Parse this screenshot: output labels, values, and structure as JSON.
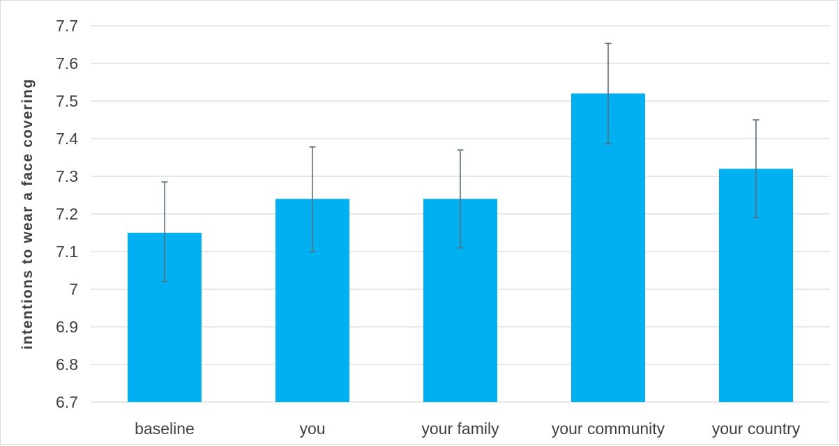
{
  "chart_data": {
    "type": "bar",
    "title": "",
    "xlabel": "",
    "ylabel": "intentions to wear a face covering",
    "categories": [
      "baseline",
      "you",
      "your family",
      "your community",
      "your country"
    ],
    "values": [
      7.15,
      7.24,
      7.24,
      7.52,
      7.32
    ],
    "error_bars": {
      "upper": [
        7.285,
        7.378,
        7.37,
        7.653,
        7.45
      ],
      "lower": [
        7.02,
        7.1,
        7.11,
        7.387,
        7.19
      ]
    },
    "ylim": [
      6.7,
      7.7
    ],
    "yticks": [
      "6.7",
      "6.8",
      "6.9",
      "7",
      "7.1",
      "7.2",
      "7.3",
      "7.4",
      "7.5",
      "7.6",
      "7.7"
    ],
    "ytick_values": [
      6.7,
      6.8,
      6.9,
      7.0,
      7.1,
      7.2,
      7.3,
      7.4,
      7.5,
      7.6,
      7.7
    ],
    "grid": true,
    "legend": "none",
    "colors": {
      "bar": "#00b0f0",
      "error_bar": "#5a6e7f",
      "grid": "#d9d9d9",
      "text": "#404040"
    }
  }
}
